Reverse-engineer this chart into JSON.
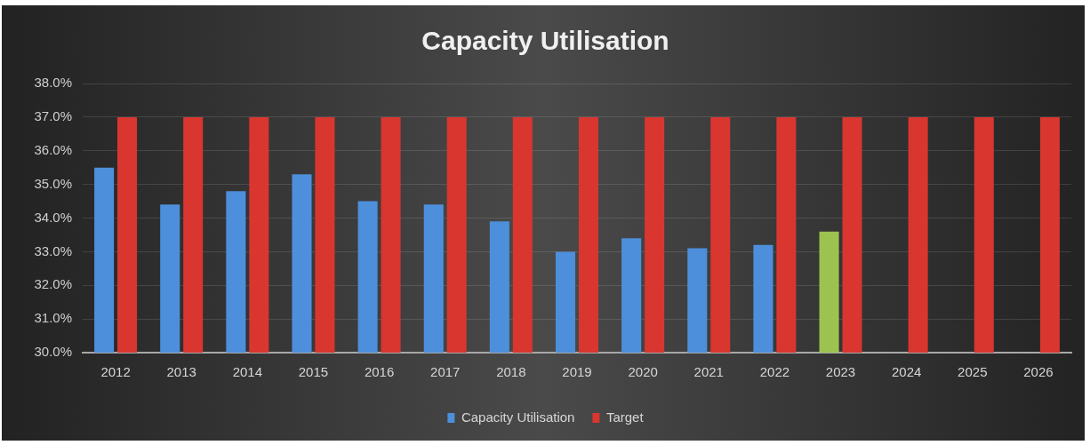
{
  "chart_data": {
    "type": "bar",
    "title": "Capacity Utilisation",
    "categories": [
      "2012",
      "2013",
      "2014",
      "2015",
      "2016",
      "2017",
      "2018",
      "2019",
      "2020",
      "2021",
      "2022",
      "2023",
      "2024",
      "2025",
      "2026"
    ],
    "series": [
      {
        "name": "Capacity Utilisation",
        "color": "#4e8fdc",
        "colors": [
          "#4e8fdc",
          "#4e8fdc",
          "#4e8fdc",
          "#4e8fdc",
          "#4e8fdc",
          "#4e8fdc",
          "#4e8fdc",
          "#4e8fdc",
          "#4e8fdc",
          "#4e8fdc",
          "#4e8fdc",
          "#9cc350",
          "#4e8fdc",
          "#4e8fdc",
          "#4e8fdc"
        ],
        "values": [
          35.5,
          34.4,
          34.8,
          35.3,
          34.5,
          34.4,
          33.9,
          33.0,
          33.4,
          33.1,
          33.2,
          33.6,
          null,
          null,
          null
        ]
      },
      {
        "name": "Target",
        "color": "#d8362f",
        "values": [
          37,
          37,
          37,
          37,
          37,
          37,
          37,
          37,
          37,
          37,
          37,
          37,
          37,
          37,
          37
        ]
      }
    ],
    "ylim": [
      30,
      38
    ],
    "yticks": [
      {
        "value": 30,
        "label": "30.0%"
      },
      {
        "value": 31,
        "label": "31.0%"
      },
      {
        "value": 32,
        "label": "32.0%"
      },
      {
        "value": 33,
        "label": "33.0%"
      },
      {
        "value": 34,
        "label": "34.0%"
      },
      {
        "value": 35,
        "label": "35.0%"
      },
      {
        "value": 36,
        "label": "36.0%"
      },
      {
        "value": 37,
        "label": "37.0%"
      },
      {
        "value": 38,
        "label": "38.0%"
      }
    ],
    "grid": "y",
    "legend": "bottom"
  }
}
